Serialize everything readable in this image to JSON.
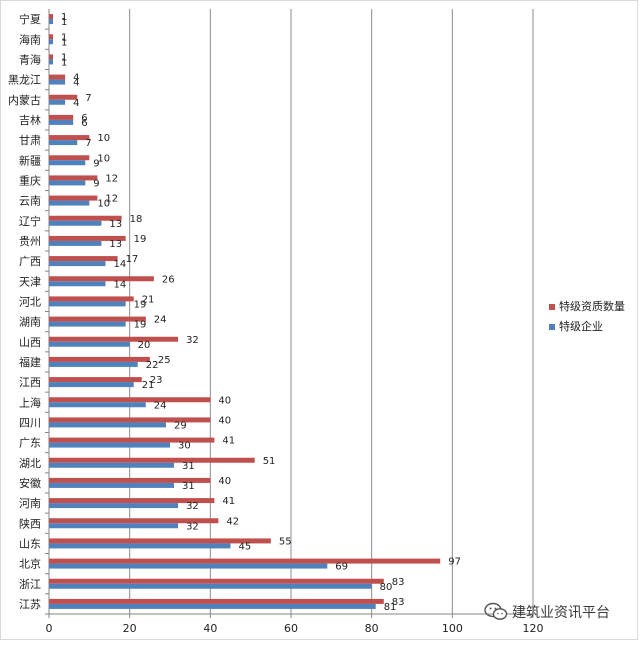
{
  "chart_data": {
    "type": "bar",
    "orientation": "horizontal",
    "categories": [
      "江苏",
      "浙江",
      "北京",
      "山东",
      "陕西",
      "河南",
      "安徽",
      "湖北",
      "广东",
      "四川",
      "上海",
      "江西",
      "福建",
      "山西",
      "湖南",
      "河北",
      "天津",
      "广西",
      "贵州",
      "辽宁",
      "云南",
      "重庆",
      "新疆",
      "甘肃",
      "吉林",
      "内蒙古",
      "黑龙江",
      "青海",
      "海南",
      "宁夏"
    ],
    "series": [
      {
        "name": "特级资质数量",
        "color": "#c0504d",
        "values": [
          83,
          83,
          97,
          55,
          42,
          41,
          40,
          51,
          41,
          40,
          40,
          23,
          25,
          32,
          24,
          21,
          26,
          17,
          19,
          18,
          12,
          12,
          10,
          10,
          6,
          7,
          4,
          1,
          1,
          1
        ]
      },
      {
        "name": "特级企业",
        "color": "#4f81bd",
        "values": [
          81,
          80,
          69,
          45,
          32,
          32,
          31,
          31,
          30,
          29,
          24,
          21,
          22,
          20,
          19,
          19,
          14,
          14,
          13,
          13,
          10,
          9,
          9,
          7,
          6,
          4,
          4,
          1,
          1,
          1
        ]
      }
    ],
    "x_ticks": [
      "0",
      "20",
      "40",
      "60",
      "80",
      "100",
      "120"
    ],
    "xlim": [
      0,
      120
    ],
    "grid": true,
    "legend_position": "right"
  },
  "watermark": {
    "text": "建筑业资讯平台",
    "icon": "wechat-icon"
  }
}
